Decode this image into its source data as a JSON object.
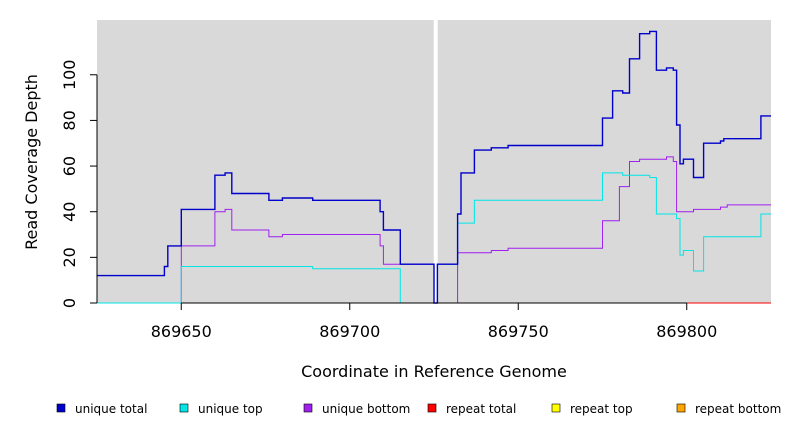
{
  "chart_data": {
    "type": "line",
    "xlabel": "Coordinate in Reference Genome",
    "ylabel": "Read Coverage Depth",
    "xlim": [
      869625,
      869825
    ],
    "ylim": [
      0,
      124
    ],
    "x_ticks": [
      869650,
      869700,
      869750,
      869800
    ],
    "x_tick_labels": [
      "869650",
      "869700",
      "869750",
      "869800"
    ],
    "y_ticks": [
      0,
      20,
      40,
      60,
      80,
      100
    ],
    "y_tick_labels": [
      "0",
      "20",
      "40",
      "60",
      "80",
      "100"
    ],
    "background": "#d9d9d9",
    "gap_marker_x": 869725.5,
    "legend_position": "bottom",
    "series": [
      {
        "name": "unique total",
        "color": "#0000cc",
        "steps": [
          [
            869625,
            12
          ],
          [
            869645,
            16
          ],
          [
            869646,
            25
          ],
          [
            869650,
            41
          ],
          [
            869660,
            56
          ],
          [
            869663,
            57
          ],
          [
            869665,
            48
          ],
          [
            869676,
            45
          ],
          [
            869680,
            46
          ],
          [
            869689,
            45
          ],
          [
            869709,
            40
          ],
          [
            869710,
            32
          ],
          [
            869715,
            17
          ],
          [
            869725,
            0
          ],
          [
            869726,
            17
          ],
          [
            869732,
            39
          ],
          [
            869733,
            57
          ],
          [
            869737,
            67
          ],
          [
            869742,
            68
          ],
          [
            869747,
            69
          ],
          [
            869775,
            81
          ],
          [
            869778,
            93
          ],
          [
            869781,
            92
          ],
          [
            869783,
            107
          ],
          [
            869786,
            118
          ],
          [
            869789,
            119
          ],
          [
            869791,
            102
          ],
          [
            869794,
            103
          ],
          [
            869796,
            102
          ],
          [
            869797,
            78
          ],
          [
            869798,
            61
          ],
          [
            869799,
            63
          ],
          [
            869802,
            55
          ],
          [
            869805,
            70
          ],
          [
            869810,
            71
          ],
          [
            869811,
            72
          ],
          [
            869822,
            82
          ],
          [
            869825,
            82
          ]
        ]
      },
      {
        "name": "unique top",
        "color": "#00e6e6",
        "steps": [
          [
            869625,
            0
          ],
          [
            869650,
            16
          ],
          [
            869689,
            15
          ],
          [
            869715,
            0
          ],
          [
            869726,
            17
          ],
          [
            869732,
            35
          ],
          [
            869737,
            45
          ],
          [
            869775,
            57
          ],
          [
            869781,
            56
          ],
          [
            869786,
            56
          ],
          [
            869789,
            55
          ],
          [
            869791,
            39
          ],
          [
            869797,
            37
          ],
          [
            869798,
            21
          ],
          [
            869799,
            23
          ],
          [
            869802,
            14
          ],
          [
            869805,
            29
          ],
          [
            869822,
            39
          ],
          [
            869825,
            39
          ]
        ]
      },
      {
        "name": "unique bottom",
        "color": "#a020f0",
        "steps": [
          [
            869625,
            0
          ],
          [
            869650,
            25
          ],
          [
            869660,
            40
          ],
          [
            869663,
            41
          ],
          [
            869665,
            32
          ],
          [
            869676,
            29
          ],
          [
            869680,
            30
          ],
          [
            869709,
            25
          ],
          [
            869710,
            17
          ],
          [
            869725,
            0
          ],
          [
            869732,
            22
          ],
          [
            869742,
            23
          ],
          [
            869747,
            24
          ],
          [
            869775,
            36
          ],
          [
            869780,
            51
          ],
          [
            869783,
            62
          ],
          [
            869786,
            63
          ],
          [
            869794,
            64
          ],
          [
            869796,
            62
          ],
          [
            869797,
            40
          ],
          [
            869802,
            41
          ],
          [
            869810,
            42
          ],
          [
            869812,
            43
          ],
          [
            869825,
            43
          ]
        ]
      },
      {
        "name": "repeat total",
        "color": "#ff0000",
        "steps": [
          [
            869625,
            0
          ],
          [
            869825,
            0
          ]
        ]
      },
      {
        "name": "repeat top",
        "color": "#ffff00",
        "steps": [
          [
            869625,
            0
          ],
          [
            869825,
            0
          ]
        ]
      },
      {
        "name": "repeat bottom",
        "color": "#ffa500",
        "steps": [
          [
            869625,
            0
          ],
          [
            869825,
            0
          ]
        ]
      }
    ]
  }
}
